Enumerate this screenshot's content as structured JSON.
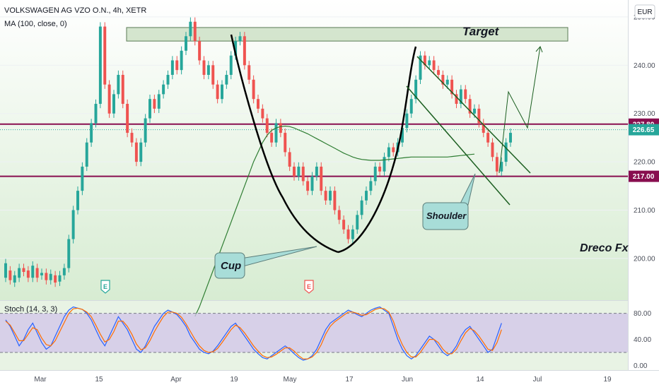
{
  "header": {
    "symbol_line": "VOLKSWAGEN AG VZO O.N., 4h, XETR",
    "indicator_line": "MA (100, close, 0)",
    "currency_button": "EUR"
  },
  "stoch_label": "Stoch (14, 3, 3)",
  "annotations": {
    "target": "Target",
    "cup": "Cup",
    "shoulder": "Shoulder",
    "watermark": "Dreco Fx",
    "event_marker": "E"
  },
  "colors": {
    "up_candle": "#26a69a",
    "down_candle": "#ef5350",
    "level_line": "#880e4f",
    "ma_line": "#2e7d32",
    "background_gradient": "#d7ecd2",
    "stoch_k": "#2962ff",
    "stoch_d": "#ff6d00",
    "stoch_band": "#d1c4e9"
  },
  "chart_data": [
    {
      "type": "candlestick",
      "title": "VOLKSWAGEN AG VZO O.N., 4h, XETR",
      "ylim": [
        191.5,
        253.5
      ],
      "y_ticks": [
        200,
        210,
        220,
        230,
        240,
        250
      ],
      "y_tick_labels": [
        "200.00",
        "210.00",
        "220.00",
        "230.00",
        "240.00",
        "250.00"
      ],
      "x_tick_labels": [
        "Mar",
        "15",
        "Apr",
        "19",
        "May",
        "17",
        "Jun",
        "14",
        "Jul",
        "19"
      ],
      "price_tags": [
        {
          "label": "227.80",
          "value": 227.8,
          "color": "#880e4f"
        },
        {
          "label": "226.65",
          "value": 226.65,
          "color": "#26a69a"
        },
        {
          "label": "217.00",
          "value": 217.0,
          "color": "#880e4f"
        }
      ],
      "levels": [
        {
          "value": 227.8
        },
        {
          "value": 217.0
        }
      ],
      "target_zone": [
        245.0,
        247.8
      ],
      "series": [
        {
          "name": "price",
          "points": [
            [
              196.0,
              199.0
            ],
            [
              197.5,
              195.5
            ],
            [
              195.0,
              196.5
            ],
            [
              196.0,
              198.0
            ],
            [
              198.0,
              197.2
            ],
            [
              197.5,
              196.0
            ],
            [
              196.0,
              198.5
            ],
            [
              198.0,
              196.0
            ],
            [
              196.5,
              197.0
            ],
            [
              197.0,
              195.5
            ],
            [
              195.5,
              196.8
            ],
            [
              196.5,
              195.0
            ],
            [
              195.2,
              196.5
            ],
            [
              196.5,
              198.0
            ],
            [
              198.0,
              204.0
            ],
            [
              204.0,
              210.0
            ],
            [
              210.0,
              214.0
            ],
            [
              214.0,
              219.0
            ],
            [
              219.0,
              224.0
            ],
            [
              224.0,
              228.0
            ],
            [
              228.0,
              232.0
            ],
            [
              232.0,
              248.0
            ],
            [
              248.0,
              236.0
            ],
            [
              236.0,
              230.0
            ],
            [
              230.0,
              234.0
            ],
            [
              234.0,
              238.0
            ],
            [
              238.0,
              232.0
            ],
            [
              232.0,
              226.0
            ],
            [
              226.0,
              224.0
            ],
            [
              224.0,
              220.0
            ],
            [
              220.0,
              224.0
            ],
            [
              224.0,
              229.0
            ],
            [
              229.0,
              233.0
            ],
            [
              233.0,
              231.0
            ],
            [
              231.0,
              234.0
            ],
            [
              234.0,
              236.0
            ],
            [
              236.0,
              238.0
            ],
            [
              238.0,
              241.0
            ],
            [
              241.0,
              239.0
            ],
            [
              239.0,
              243.0
            ],
            [
              243.0,
              246.0
            ],
            [
              246.0,
              249.0
            ],
            [
              249.0,
              245.0
            ],
            [
              245.0,
              241.0
            ],
            [
              241.0,
              238.0
            ],
            [
              238.0,
              240.0
            ],
            [
              240.0,
              236.0
            ],
            [
              236.0,
              233.0
            ],
            [
              233.0,
              236.0
            ],
            [
              236.0,
              238.0
            ],
            [
              238.0,
              242.0
            ],
            [
              242.0,
              245.0
            ],
            [
              245.0,
              246.0
            ],
            [
              246.0,
              240.0
            ],
            [
              240.0,
              237.0
            ],
            [
              237.0,
              233.0
            ],
            [
              233.0,
              231.0
            ],
            [
              231.0,
              229.0
            ],
            [
              229.0,
              226.0
            ],
            [
              226.0,
              224.0
            ],
            [
              224.0,
              228.0
            ],
            [
              228.0,
              226.0
            ],
            [
              226.0,
              222.0
            ],
            [
              222.0,
              219.0
            ],
            [
              219.0,
              217.0
            ],
            [
              217.0,
              219.0
            ],
            [
              219.0,
              216.0
            ],
            [
              216.0,
              214.0
            ],
            [
              214.0,
              217.0
            ],
            [
              217.0,
              219.0
            ],
            [
              219.0,
              214.0
            ],
            [
              214.0,
              212.0
            ],
            [
              212.0,
              214.0
            ],
            [
              214.0,
              210.0
            ],
            [
              210.0,
              208.0
            ],
            [
              208.0,
              206.0
            ],
            [
              206.0,
              204.0
            ],
            [
              204.0,
              206.0
            ],
            [
              206.0,
              209.0
            ],
            [
              209.0,
              212.0
            ],
            [
              212.0,
              214.0
            ],
            [
              214.0,
              216.0
            ],
            [
              216.0,
              219.0
            ],
            [
              219.0,
              218.0
            ],
            [
              218.0,
              221.0
            ],
            [
              221.0,
              223.0
            ],
            [
              223.0,
              222.0
            ],
            [
              222.0,
              224.0
            ],
            [
              224.0,
              227.0
            ],
            [
              227.0,
              230.0
            ],
            [
              230.0,
              233.0
            ],
            [
              233.0,
              237.0
            ],
            [
              237.0,
              242.0
            ],
            [
              242.0,
              240.0
            ],
            [
              240.0,
              241.0
            ],
            [
              241.0,
              239.0
            ],
            [
              239.0,
              238.0
            ],
            [
              238.0,
              236.0
            ],
            [
              236.0,
              237.0
            ],
            [
              237.0,
              234.0
            ],
            [
              234.0,
              232.0
            ],
            [
              232.0,
              235.0
            ],
            [
              235.0,
              233.0
            ],
            [
              233.0,
              230.0
            ],
            [
              230.0,
              231.0
            ],
            [
              231.0,
              228.0
            ],
            [
              228.0,
              226.0
            ],
            [
              226.0,
              224.0
            ],
            [
              224.0,
              221.0
            ],
            [
              221.0,
              218.0
            ],
            [
              218.0,
              220.0
            ],
            [
              220.0,
              224.0
            ],
            [
              224.0,
              226.0
            ]
          ]
        },
        {
          "name": "MA (100, close, 0)",
          "values": [
            null,
            null,
            null,
            null,
            null,
            null,
            null,
            null,
            null,
            null,
            null,
            null,
            null,
            null,
            null,
            null,
            null,
            null,
            null,
            null,
            null,
            null,
            null,
            null,
            null,
            null,
            null,
            null,
            null,
            null,
            null,
            null,
            null,
            null,
            null,
            null,
            null,
            null,
            null,
            null,
            null,
            null,
            188.0,
            190.0,
            192.5,
            195.0,
            197.5,
            200.0,
            202.5,
            205.0,
            207.5,
            210.0,
            212.5,
            215.0,
            217.5,
            220.0,
            222.0,
            224.0,
            225.5,
            226.5,
            227.0,
            227.3,
            227.4,
            227.3,
            227.0,
            226.6,
            226.2,
            225.8,
            225.3,
            224.8,
            224.3,
            223.8,
            223.3,
            222.8,
            222.3,
            221.8,
            221.4,
            221.0,
            220.7,
            220.5,
            220.4,
            220.3,
            220.3,
            220.3,
            220.4,
            220.5,
            220.6,
            220.7,
            220.8,
            220.9,
            221.0,
            221.0,
            221.0,
            221.0,
            221.0,
            221.0,
            221.0,
            221.0,
            221.0,
            221.1,
            221.2,
            221.3,
            221.4,
            221.5,
            221.6
          ]
        }
      ]
    },
    {
      "type": "line",
      "title": "Stoch (14, 3, 3)",
      "ylim": [
        -5,
        97
      ],
      "y_ticks": [
        0,
        40,
        80
      ],
      "y_tick_labels": [
        "0.00",
        "40.00",
        "80.00"
      ],
      "bands": [
        20,
        80
      ],
      "series": [
        {
          "name": "%K",
          "values": [
            70,
            60,
            45,
            30,
            40,
            55,
            65,
            50,
            35,
            25,
            30,
            45,
            60,
            75,
            85,
            90,
            88,
            86,
            80,
            70,
            55,
            40,
            30,
            45,
            60,
            75,
            65,
            55,
            40,
            25,
            20,
            30,
            45,
            60,
            70,
            80,
            85,
            82,
            78,
            70,
            60,
            45,
            35,
            25,
            20,
            18,
            22,
            30,
            40,
            50,
            60,
            65,
            55,
            45,
            35,
            25,
            18,
            12,
            10,
            15,
            20,
            25,
            30,
            25,
            18,
            12,
            8,
            10,
            15,
            25,
            40,
            55,
            65,
            70,
            75,
            80,
            85,
            82,
            78,
            75,
            80,
            85,
            88,
            90,
            85,
            80,
            60,
            40,
            25,
            15,
            10,
            15,
            25,
            35,
            45,
            40,
            30,
            20,
            15,
            20,
            30,
            45,
            55,
            60,
            50,
            40,
            30,
            20,
            25,
            45,
            65
          ]
        },
        {
          "name": "%D",
          "values": [
            68,
            62,
            50,
            38,
            38,
            48,
            58,
            55,
            42,
            32,
            30,
            38,
            52,
            66,
            80,
            87,
            88,
            86,
            82,
            75,
            62,
            48,
            36,
            40,
            52,
            68,
            68,
            60,
            48,
            33,
            24,
            27,
            38,
            52,
            64,
            75,
            82,
            82,
            80,
            74,
            64,
            52,
            40,
            30,
            23,
            20,
            21,
            26,
            35,
            45,
            55,
            62,
            58,
            50,
            40,
            30,
            22,
            15,
            12,
            13,
            17,
            22,
            27,
            27,
            22,
            15,
            10,
            10,
            13,
            20,
            32,
            48,
            60,
            67,
            72,
            77,
            82,
            82,
            80,
            77,
            78,
            82,
            86,
            88,
            87,
            82,
            68,
            48,
            32,
            20,
            13,
            13,
            20,
            30,
            40,
            40,
            35,
            25,
            18,
            18,
            25,
            38,
            50,
            57,
            53,
            45,
            35,
            25,
            23,
            35,
            55
          ]
        }
      ]
    }
  ]
}
